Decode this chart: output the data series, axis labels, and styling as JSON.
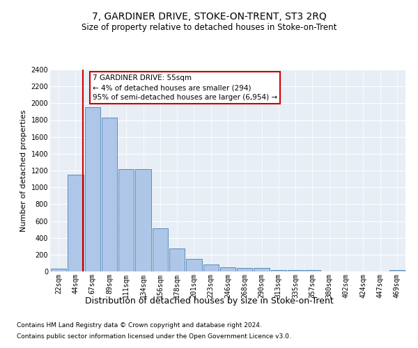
{
  "title": "7, GARDINER DRIVE, STOKE-ON-TRENT, ST3 2RQ",
  "subtitle": "Size of property relative to detached houses in Stoke-on-Trent",
  "xlabel": "Distribution of detached houses by size in Stoke-on-Trent",
  "ylabel": "Number of detached properties",
  "bin_labels": [
    "22sqm",
    "44sqm",
    "67sqm",
    "89sqm",
    "111sqm",
    "134sqm",
    "156sqm",
    "178sqm",
    "201sqm",
    "223sqm",
    "246sqm",
    "268sqm",
    "290sqm",
    "313sqm",
    "335sqm",
    "357sqm",
    "380sqm",
    "402sqm",
    "424sqm",
    "447sqm",
    "469sqm"
  ],
  "bar_values": [
    30,
    1150,
    1950,
    1830,
    1220,
    1220,
    515,
    270,
    150,
    80,
    50,
    42,
    42,
    20,
    15,
    20,
    0,
    0,
    0,
    0,
    20
  ],
  "bar_color": "#aec6e8",
  "bar_edge_color": "#5b8db8",
  "vline_color": "#cc0000",
  "vline_x": 1.45,
  "annotation_title": "7 GARDINER DRIVE: 55sqm",
  "annotation_line1": "← 4% of detached houses are smaller (294)",
  "annotation_line2": "95% of semi-detached houses are larger (6,954) →",
  "annotation_box_color": "#ffffff",
  "annotation_border_color": "#cc0000",
  "ylim": [
    0,
    2400
  ],
  "yticks": [
    0,
    200,
    400,
    600,
    800,
    1000,
    1200,
    1400,
    1600,
    1800,
    2000,
    2200,
    2400
  ],
  "footer1": "Contains HM Land Registry data © Crown copyright and database right 2024.",
  "footer2": "Contains public sector information licensed under the Open Government Licence v3.0.",
  "bg_color": "#ffffff",
  "plot_bg_color": "#e8eef5",
  "grid_color": "#ffffff",
  "title_fontsize": 10,
  "subtitle_fontsize": 8.5,
  "xlabel_fontsize": 9,
  "ylabel_fontsize": 8,
  "tick_fontsize": 7,
  "footer_fontsize": 6.5,
  "ann_fontsize": 7.5
}
